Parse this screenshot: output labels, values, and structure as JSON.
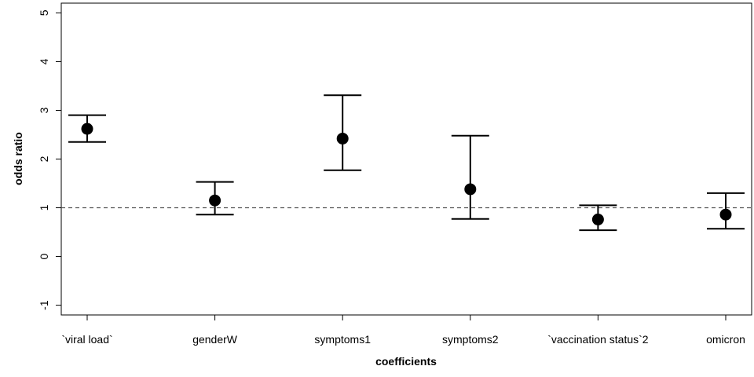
{
  "chart_data": {
    "type": "errorbar",
    "xlabel": "coefficients",
    "ylabel": "odds ratio",
    "ylim": [
      -1.2,
      5.2
    ],
    "yticks": [
      "-1",
      "0",
      "1",
      "2",
      "3",
      "4",
      "5"
    ],
    "reference_line": 1,
    "categories": [
      "`viral load`",
      "genderW",
      "symptoms1",
      "symptoms2",
      "`vaccination status`2",
      "omicron"
    ],
    "estimates": [
      2.62,
      1.15,
      2.42,
      1.38,
      0.76,
      0.86
    ],
    "lower": [
      2.35,
      0.86,
      1.77,
      0.77,
      0.54,
      0.57
    ],
    "upper": [
      2.9,
      1.53,
      3.31,
      2.48,
      1.05,
      1.3
    ],
    "grid": false,
    "legend": "none"
  }
}
